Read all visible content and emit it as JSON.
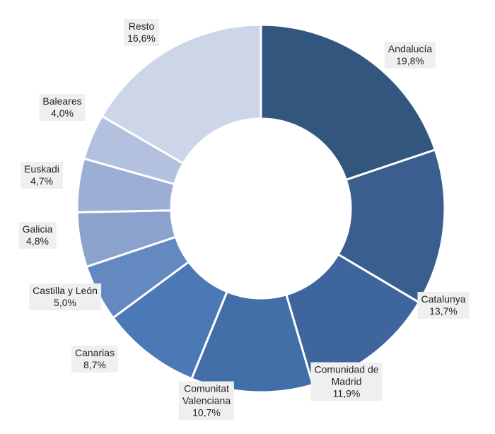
{
  "chart_data": {
    "type": "pie",
    "donut": true,
    "legend": "none",
    "start_angle_deg": 0,
    "direction": "clockwise",
    "slices": [
      {
        "name": "Andalucía",
        "value": 19.8,
        "display": "19,8%",
        "color": "#33567f"
      },
      {
        "name": "Catalunya",
        "value": 13.7,
        "display": "13,7%",
        "color": "#3a5f8f"
      },
      {
        "name": "Comunidad de Madrid",
        "value": 11.9,
        "display": "11,9%",
        "color": "#3e669c"
      },
      {
        "name": "Comunitat Valenciana",
        "value": 10.7,
        "display": "10,7%",
        "color": "#436fa8"
      },
      {
        "name": "Canarias",
        "value": 8.7,
        "display": "8,7%",
        "color": "#4b79b5"
      },
      {
        "name": "Castilla y León",
        "value": 5.0,
        "display": "5,0%",
        "color": "#6489c0"
      },
      {
        "name": "Galicia",
        "value": 4.8,
        "display": "4,8%",
        "color": "#8aa2cc"
      },
      {
        "name": "Euskadi",
        "value": 4.7,
        "display": "4,7%",
        "color": "#9daed5"
      },
      {
        "name": "Baleares",
        "value": 4.0,
        "display": "4,0%",
        "color": "#b4c1de"
      },
      {
        "name": "Resto",
        "value": 16.6,
        "display": "16,6%",
        "color": "#ccd6e8"
      }
    ]
  }
}
